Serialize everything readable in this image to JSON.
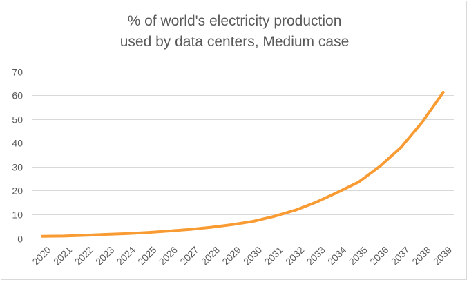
{
  "chart_data": {
    "type": "line",
    "title_lines": [
      "% of world's electricity production",
      "used by data centers, Medium case"
    ],
    "xlabel": "",
    "ylabel": "",
    "x": [
      "2020",
      "2021",
      "2022",
      "2023",
      "2024",
      "2025",
      "2026",
      "2027",
      "2028",
      "2029",
      "2030",
      "2031",
      "2032",
      "2033",
      "2034",
      "2035",
      "2036",
      "2037",
      "2038",
      "2039"
    ],
    "series": [
      {
        "name": "Medium case",
        "color": "#F99B33",
        "values": [
          0.8,
          0.9,
          1.2,
          1.6,
          1.9,
          2.4,
          3.0,
          3.7,
          4.6,
          5.7,
          7.1,
          9.2,
          11.8,
          15.2,
          19.3,
          23.6,
          30.2,
          38.1,
          48.7,
          61.2
        ]
      }
    ],
    "ylim": [
      0,
      70
    ],
    "yticks": [
      "0",
      "10",
      "20",
      "30",
      "40",
      "50",
      "60",
      "70"
    ],
    "grid": true,
    "legend": "none"
  }
}
